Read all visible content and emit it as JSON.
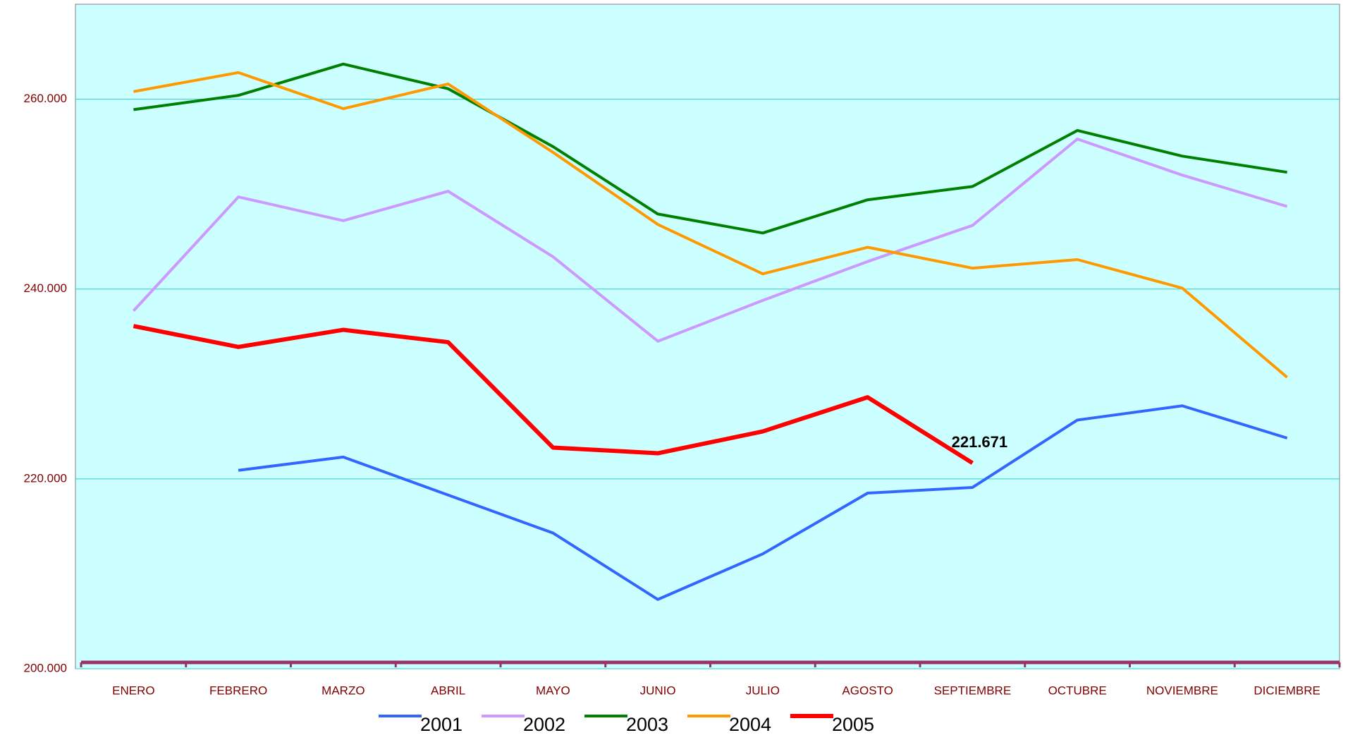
{
  "chart_data": {
    "type": "line",
    "categories": [
      "ENERO",
      "FEBRERO",
      "MARZO",
      "ABRIL",
      "MAYO",
      "JUNIO",
      "JULIO",
      "AGOSTO",
      "SEPTIEMBRE",
      "OCTUBRE",
      "NOVIEMBRE",
      "DICIEMBRE"
    ],
    "series": [
      {
        "name": "2001",
        "color": "#3366ff",
        "line_width": 4,
        "values": [
          null,
          220900,
          222300,
          218300,
          214300,
          207300,
          212100,
          218500,
          219100,
          226200,
          227700,
          224300
        ]
      },
      {
        "name": "2002",
        "color": "#cc99ff",
        "line_width": 4,
        "values": [
          237700,
          249700,
          247200,
          250300,
          243400,
          234500,
          238800,
          242900,
          246700,
          255800,
          252000,
          248700
        ]
      },
      {
        "name": "2003",
        "color": "#008000",
        "line_width": 4,
        "values": [
          258900,
          260400,
          263700,
          261100,
          255000,
          247900,
          245900,
          249400,
          250800,
          256700,
          254000,
          252300
        ]
      },
      {
        "name": "2004",
        "color": "#ff9900",
        "line_width": 4,
        "values": [
          260800,
          262800,
          259000,
          261600,
          254400,
          246800,
          241600,
          244400,
          242200,
          243100,
          240100,
          230700
        ]
      },
      {
        "name": "2005",
        "color": "#ff0000",
        "line_width": 6,
        "values": [
          236100,
          233900,
          235700,
          234400,
          223300,
          222700,
          225000,
          228600,
          221671,
          null,
          null,
          null
        ],
        "value_labels": [
          null,
          null,
          null,
          null,
          null,
          null,
          null,
          null,
          "221.671",
          null,
          null,
          null
        ]
      }
    ],
    "ylim": [
      200000,
      270000
    ],
    "yticks": [
      {
        "value": 200000,
        "label": "200.000"
      },
      {
        "value": 220000,
        "label": "220.000"
      },
      {
        "value": 240000,
        "label": "240.000"
      },
      {
        "value": 260000,
        "label": "260.000"
      }
    ],
    "grid": true,
    "background": "#ccffff",
    "grid_color": "#33cccc",
    "legend": "bottom"
  }
}
